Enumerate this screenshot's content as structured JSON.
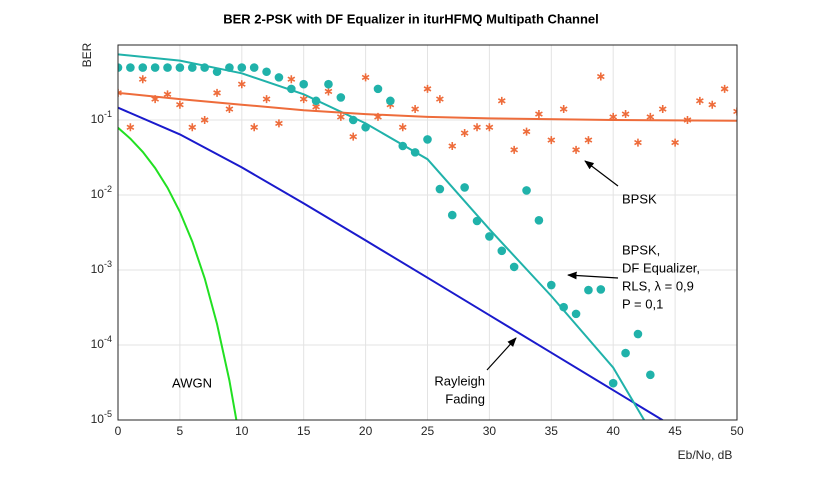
{
  "chart_data": {
    "type": "line",
    "title": "BER 2-PSK with DF Equalizer in iturHFMQ Multipath Channel",
    "x_label": "Eb/No, dB",
    "y_label": "BER",
    "log_y": true,
    "grid": true,
    "xlim": [
      0,
      50
    ],
    "xticks": [
      0,
      5,
      10,
      15,
      20,
      25,
      30,
      35,
      40,
      45,
      50
    ],
    "ylim": [
      1e-05,
      1
    ],
    "yticks": [
      {
        "value": 1e-05,
        "label": "10^-5"
      },
      {
        "value": 0.0001,
        "label": "10^-4"
      },
      {
        "value": 0.001,
        "label": "10^-3"
      },
      {
        "value": 0.01,
        "label": "10^-2"
      },
      {
        "value": 0.1,
        "label": "10^-1"
      }
    ],
    "series": [
      {
        "style": "line",
        "color": "#22e022",
        "x": [
          0,
          1,
          2,
          3,
          4,
          5,
          6,
          7,
          8,
          9,
          10
        ],
        "values": [
          0.0786,
          0.0563,
          0.0375,
          0.0229,
          0.0125,
          0.00595,
          0.00239,
          0.000773,
          0.000191,
          3.36e-05,
          3.9e-06
        ]
      },
      {
        "style": "line",
        "color": "#1a1acc",
        "x": [
          0,
          5,
          10,
          15,
          20,
          25,
          30,
          35,
          40,
          45
        ],
        "values": [
          0.146,
          0.0643,
          0.0233,
          0.00772,
          0.00248,
          0.00079,
          0.00025,
          7.9e-05,
          2.5e-05,
          7.9e-06
        ]
      },
      {
        "style": "line",
        "color": "#20b2aa",
        "x": [
          0,
          5,
          10,
          15,
          20,
          25,
          30,
          35,
          40,
          42.5
        ],
        "values": [
          0.75,
          0.62,
          0.42,
          0.22,
          0.09,
          0.03,
          0.0035,
          0.00045,
          5e-05,
          1e-05
        ]
      },
      {
        "style": "line",
        "color": "#ee6c3b",
        "x": [
          0,
          5,
          10,
          15,
          20,
          25,
          30,
          40,
          50
        ],
        "values": [
          0.23,
          0.19,
          0.16,
          0.135,
          0.12,
          0.11,
          0.105,
          0.1,
          0.098
        ]
      },
      {
        "style": "star",
        "color": "#ee6c3b",
        "x": [
          0,
          1,
          2,
          3,
          4,
          5,
          6,
          7,
          8,
          9,
          10,
          11,
          12,
          13,
          14,
          15,
          16,
          17,
          18,
          19,
          20,
          21,
          22,
          23,
          24,
          25,
          26,
          27,
          28,
          29,
          30,
          31,
          32,
          33,
          34,
          35,
          36,
          37,
          38,
          39,
          40,
          41,
          42,
          43,
          44,
          45,
          46,
          47,
          48,
          49,
          50
        ],
        "values": [
          0.23,
          0.08,
          0.35,
          0.19,
          0.22,
          0.16,
          0.08,
          0.1,
          0.23,
          0.14,
          0.3,
          0.08,
          0.19,
          0.09,
          0.35,
          0.19,
          0.15,
          0.24,
          0.11,
          0.06,
          0.37,
          0.11,
          0.16,
          0.08,
          0.14,
          0.26,
          0.19,
          0.045,
          0.067,
          0.08,
          0.08,
          0.18,
          0.04,
          0.07,
          0.12,
          0.054,
          0.14,
          0.04,
          0.054,
          0.38,
          0.11,
          0.12,
          0.05,
          0.11,
          0.14,
          0.05,
          0.1,
          0.18,
          0.16,
          0.26,
          0.13
        ]
      },
      {
        "style": "dot",
        "color": "#20b2aa",
        "x": [
          0,
          1,
          2,
          3,
          4,
          5,
          6,
          7,
          8,
          9,
          10,
          11,
          12,
          13,
          14,
          15,
          16,
          17,
          18,
          19,
          20,
          21,
          22,
          23,
          24,
          25,
          26,
          27,
          28,
          29,
          30,
          31,
          32,
          33,
          34,
          35,
          36,
          37,
          38,
          39,
          40,
          41,
          42,
          43
        ],
        "values": [
          0.5,
          0.5,
          0.5,
          0.5,
          0.5,
          0.5,
          0.5,
          0.5,
          0.44,
          0.5,
          0.5,
          0.5,
          0.44,
          0.37,
          0.26,
          0.3,
          0.18,
          0.3,
          0.2,
          0.1,
          0.08,
          0.26,
          0.18,
          0.045,
          0.037,
          0.055,
          0.012,
          0.0054,
          0.0126,
          0.0045,
          0.0028,
          0.0018,
          0.0011,
          0.0115,
          0.0046,
          0.00063,
          0.00032,
          0.00026,
          0.00054,
          0.00055,
          3.1e-05,
          7.8e-05,
          0.00014,
          4e-05
        ]
      }
    ],
    "annotations": [
      {
        "lines": [
          "BPSK"
        ]
      },
      {
        "lines": [
          "BPSK,",
          "DF Equalizer,",
          "RLS, λ = 0,9",
          "P = 0,1"
        ]
      },
      {
        "lines": [
          "Rayleigh",
          "Fading"
        ]
      },
      {
        "lines": [
          "AWGN"
        ]
      }
    ]
  }
}
